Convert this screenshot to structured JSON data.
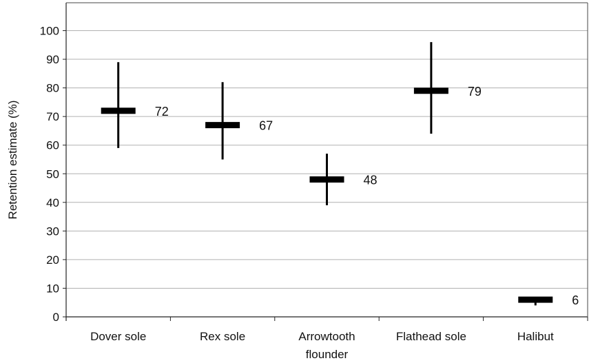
{
  "chart_data": {
    "type": "error-bar",
    "title": "",
    "xlabel": "",
    "ylabel": "Retention estimate (%)",
    "ylim": [
      0,
      108
    ],
    "yticks": [
      0,
      10,
      20,
      30,
      40,
      50,
      60,
      70,
      80,
      90,
      100
    ],
    "grid": true,
    "categories": [
      "Dover sole",
      "Rex sole",
      "Arrowtooth\nflounder",
      "Flathead sole",
      "Halibut"
    ],
    "values": [
      72,
      67,
      48,
      79,
      6
    ],
    "lower": [
      59,
      55,
      39,
      64,
      4
    ],
    "upper": [
      89,
      82,
      57,
      96,
      6.5
    ],
    "data_labels": [
      "72",
      "67",
      "48",
      "79",
      "6"
    ],
    "marker_color": "#000000",
    "grid_color": "#b0b0b0"
  }
}
